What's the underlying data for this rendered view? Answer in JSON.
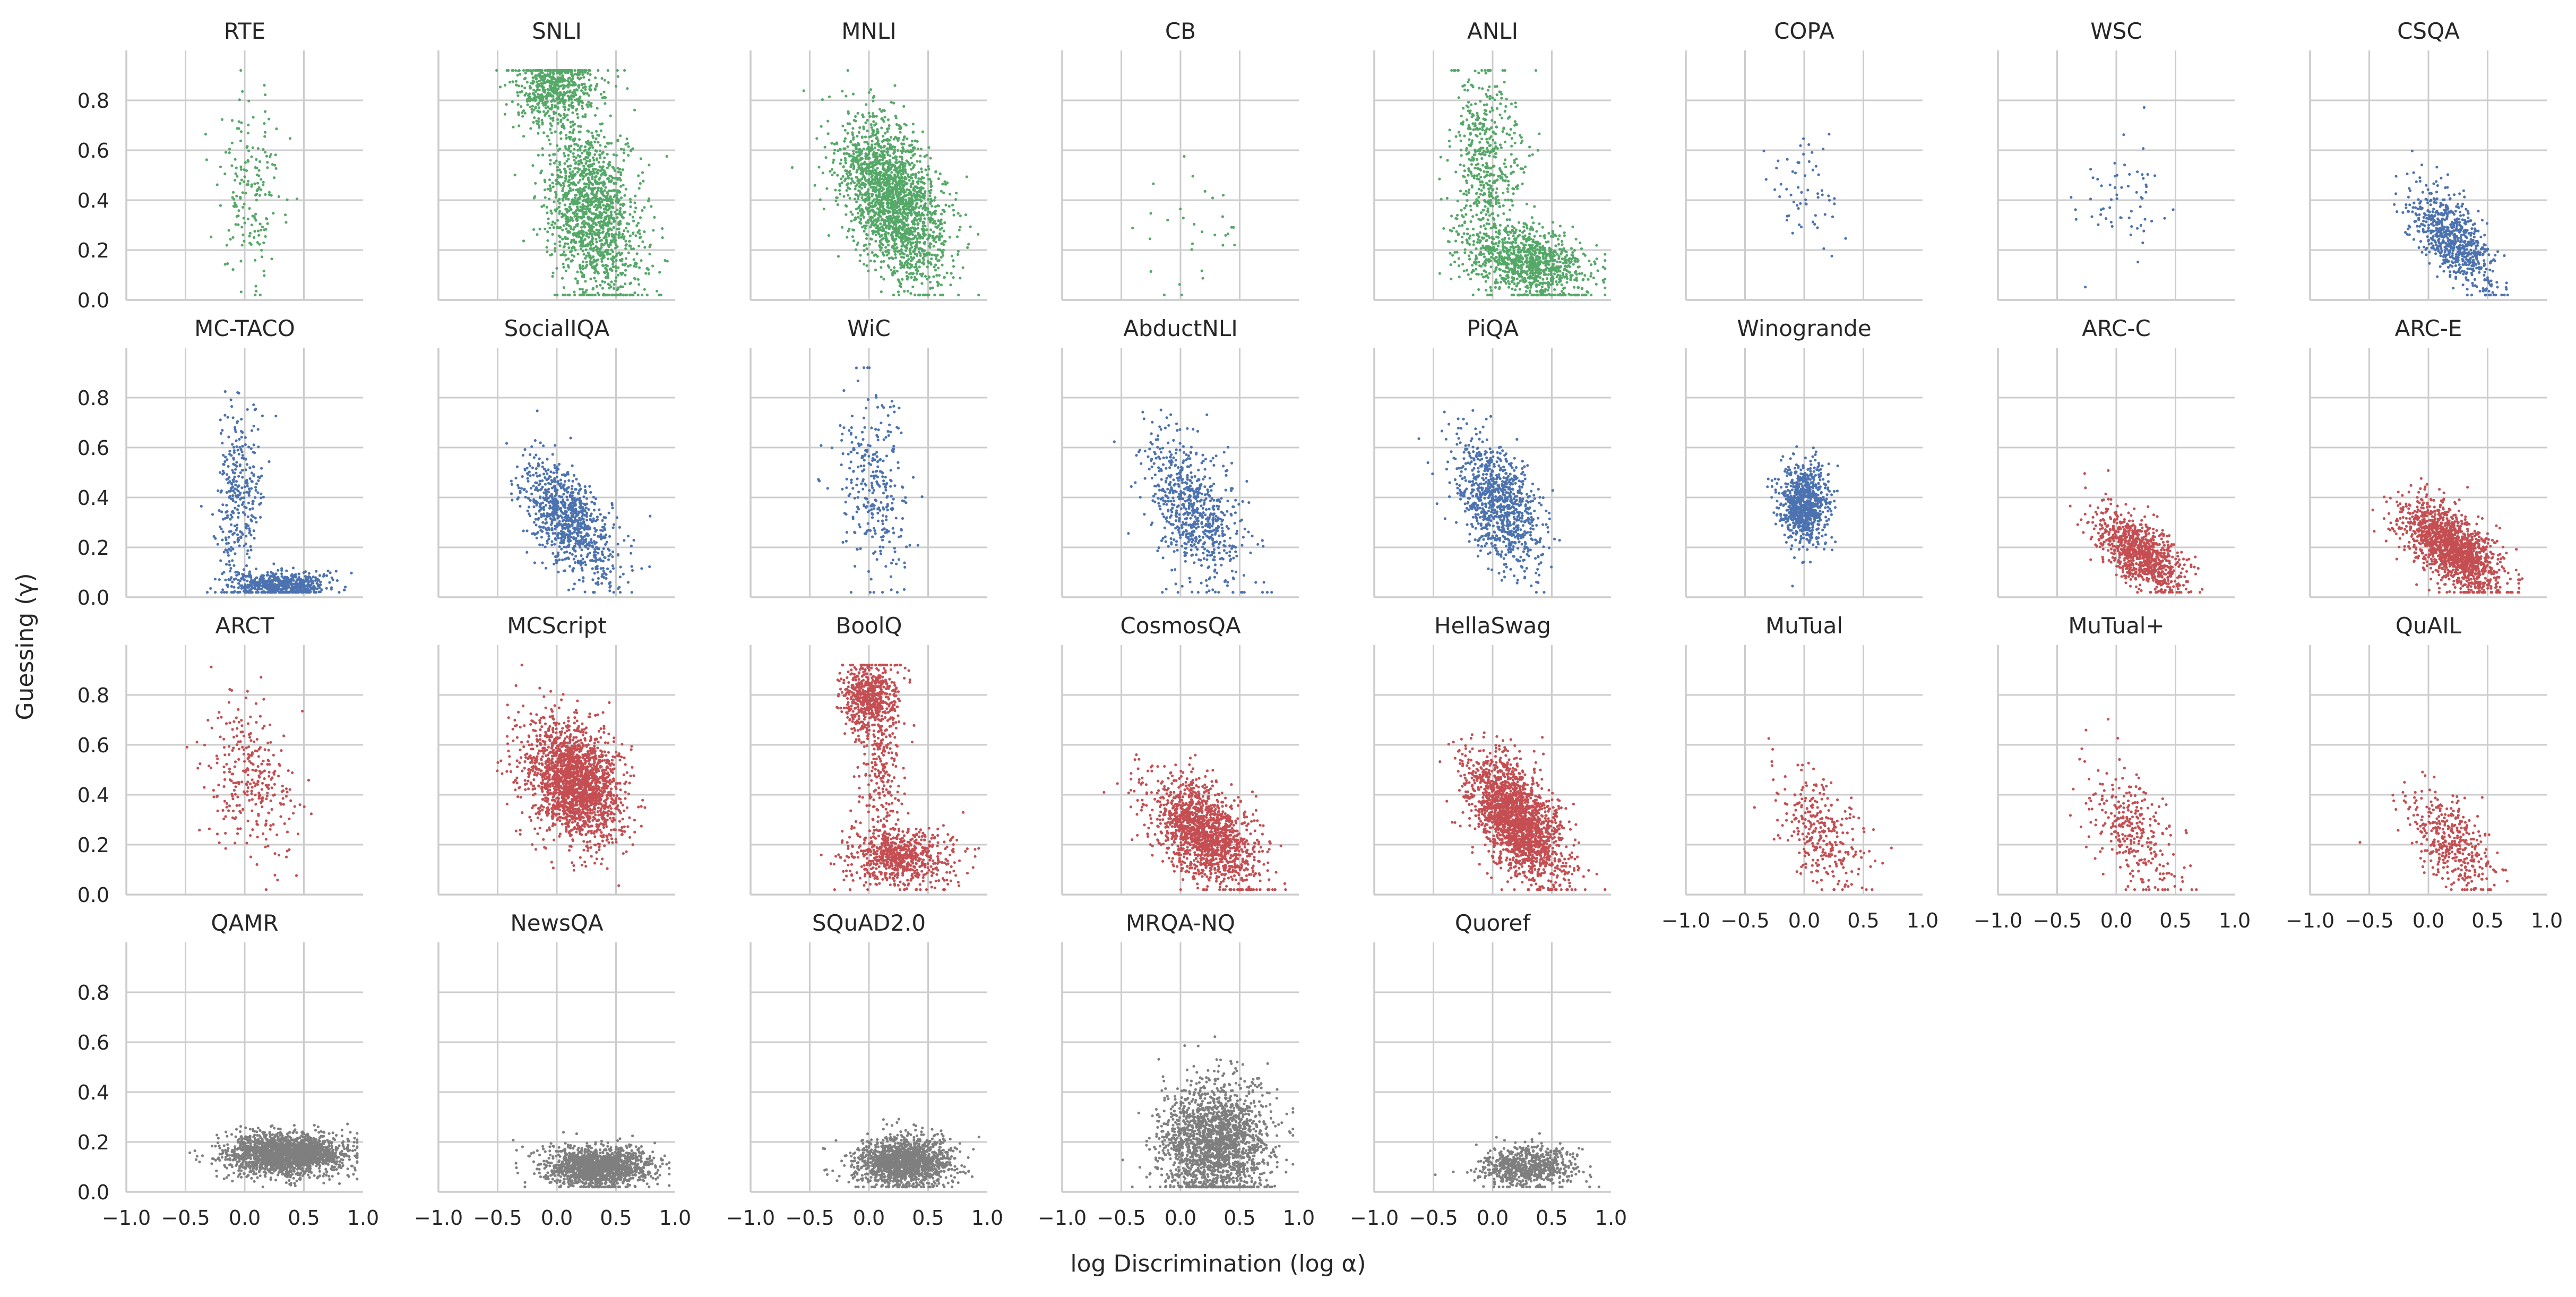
{
  "chart_data": {
    "type": "scatter",
    "layout": "small-multiples grid, 4 rows x 8 columns, shared axes",
    "xlabel": "log Discrimination (log α)",
    "ylabel": "Guessing (γ)",
    "xlim": [
      -1.0,
      1.0
    ],
    "ylim": [
      0.0,
      1.0
    ],
    "x_ticks": [
      -1.0,
      -0.5,
      0.0,
      0.5,
      1.0
    ],
    "x_tick_labels": [
      "−1.0",
      "−0.5",
      "0.0",
      "0.5",
      "1.0"
    ],
    "y_ticks": [
      0.0,
      0.2,
      0.4,
      0.6,
      0.8
    ],
    "y_tick_labels": [
      "0.0",
      "0.2",
      "0.4",
      "0.6",
      "0.8"
    ],
    "grid": true,
    "colors": {
      "green": "#55a868",
      "blue": "#4c72b0",
      "red": "#c44e52",
      "gray": "#7f7f7f"
    },
    "panels": [
      {
        "title": "RTE",
        "color": "green",
        "n": 180,
        "clusters": [
          {
            "w": 1,
            "x": 0.05,
            "sx": 0.15,
            "y": 0.45,
            "sy": 0.18,
            "rho": 0
          }
        ]
      },
      {
        "title": "SNLI",
        "color": "green",
        "n": 2000,
        "clusters": [
          {
            "w": 0.3,
            "x": 0.0,
            "sx": 0.18,
            "y": 0.85,
            "sy": 0.07,
            "rho": 0
          },
          {
            "w": 0.7,
            "x": 0.3,
            "sx": 0.2,
            "y": 0.35,
            "sy": 0.18,
            "rho": -0.3
          }
        ]
      },
      {
        "title": "MNLI",
        "color": "green",
        "n": 2000,
        "clusters": [
          {
            "w": 1,
            "x": 0.2,
            "sx": 0.22,
            "y": 0.4,
            "sy": 0.16,
            "rho": -0.45
          }
        ]
      },
      {
        "title": "CB",
        "color": "green",
        "n": 30,
        "clusters": [
          {
            "w": 1,
            "x": 0.15,
            "sx": 0.22,
            "y": 0.35,
            "sy": 0.15,
            "rho": 0
          }
        ]
      },
      {
        "title": "ANLI",
        "color": "green",
        "n": 1500,
        "clusters": [
          {
            "w": 0.35,
            "x": -0.05,
            "sx": 0.15,
            "y": 0.55,
            "sy": 0.2,
            "rho": 0
          },
          {
            "w": 0.65,
            "x": 0.3,
            "sx": 0.25,
            "y": 0.15,
            "sy": 0.08,
            "rho": -0.3
          }
        ]
      },
      {
        "title": "COPA",
        "color": "blue",
        "n": 60,
        "clusters": [
          {
            "w": 1,
            "x": 0.0,
            "sx": 0.15,
            "y": 0.42,
            "sy": 0.12,
            "rho": -0.3
          }
        ]
      },
      {
        "title": "WSC",
        "color": "blue",
        "n": 60,
        "clusters": [
          {
            "w": 1,
            "x": 0.05,
            "sx": 0.2,
            "y": 0.4,
            "sy": 0.12,
            "rho": 0
          }
        ]
      },
      {
        "title": "CSQA",
        "color": "blue",
        "n": 700,
        "clusters": [
          {
            "w": 1,
            "x": 0.2,
            "sx": 0.18,
            "y": 0.25,
            "sy": 0.1,
            "rho": -0.6
          }
        ]
      },
      {
        "title": "MC-TACO",
        "color": "blue",
        "n": 900,
        "clusters": [
          {
            "w": 0.35,
            "x": -0.05,
            "sx": 0.1,
            "y": 0.4,
            "sy": 0.2,
            "rho": 0
          },
          {
            "w": 0.65,
            "x": 0.3,
            "sx": 0.2,
            "y": 0.05,
            "sy": 0.025,
            "rho": 0
          }
        ]
      },
      {
        "title": "SocialIQA",
        "color": "blue",
        "n": 900,
        "clusters": [
          {
            "w": 1,
            "x": 0.1,
            "sx": 0.2,
            "y": 0.3,
            "sy": 0.12,
            "rho": -0.6
          }
        ]
      },
      {
        "title": "WiC",
        "color": "blue",
        "n": 300,
        "clusters": [
          {
            "w": 1,
            "x": 0.05,
            "sx": 0.15,
            "y": 0.45,
            "sy": 0.18,
            "rho": -0.2
          }
        ]
      },
      {
        "title": "AbductNLI",
        "color": "blue",
        "n": 700,
        "clusters": [
          {
            "w": 1,
            "x": 0.1,
            "sx": 0.2,
            "y": 0.35,
            "sy": 0.15,
            "rho": -0.5
          }
        ]
      },
      {
        "title": "PiQA",
        "color": "blue",
        "n": 900,
        "clusters": [
          {
            "w": 1,
            "x": 0.05,
            "sx": 0.18,
            "y": 0.38,
            "sy": 0.13,
            "rho": -0.5
          }
        ]
      },
      {
        "title": "Winogrande",
        "color": "blue",
        "n": 800,
        "clusters": [
          {
            "w": 1,
            "x": 0.0,
            "sx": 0.1,
            "y": 0.38,
            "sy": 0.08,
            "rho": 0
          }
        ]
      },
      {
        "title": "ARC-C",
        "color": "red",
        "n": 900,
        "clusters": [
          {
            "w": 1,
            "x": 0.2,
            "sx": 0.18,
            "y": 0.18,
            "sy": 0.08,
            "rho": -0.6
          }
        ]
      },
      {
        "title": "ARC-E",
        "color": "red",
        "n": 1500,
        "clusters": [
          {
            "w": 1,
            "x": 0.2,
            "sx": 0.2,
            "y": 0.2,
            "sy": 0.09,
            "rho": -0.6
          }
        ]
      },
      {
        "title": "ARCT",
        "color": "red",
        "n": 300,
        "clusters": [
          {
            "w": 1,
            "x": 0.05,
            "sx": 0.18,
            "y": 0.45,
            "sy": 0.15,
            "rho": -0.2
          }
        ]
      },
      {
        "title": "MCScript",
        "color": "red",
        "n": 2000,
        "clusters": [
          {
            "w": 1,
            "x": 0.15,
            "sx": 0.2,
            "y": 0.45,
            "sy": 0.12,
            "rho": -0.3
          }
        ]
      },
      {
        "title": "BoolQ",
        "color": "red",
        "n": 1500,
        "clusters": [
          {
            "w": 0.4,
            "x": 0.0,
            "sx": 0.12,
            "y": 0.8,
            "sy": 0.07,
            "rho": 0
          },
          {
            "w": 0.15,
            "x": 0.1,
            "sx": 0.1,
            "y": 0.5,
            "sy": 0.15,
            "rho": 0
          },
          {
            "w": 0.45,
            "x": 0.25,
            "sx": 0.22,
            "y": 0.15,
            "sy": 0.06,
            "rho": 0
          }
        ]
      },
      {
        "title": "CosmosQA",
        "color": "red",
        "n": 1500,
        "clusters": [
          {
            "w": 1,
            "x": 0.2,
            "sx": 0.22,
            "y": 0.25,
            "sy": 0.11,
            "rho": -0.5
          }
        ]
      },
      {
        "title": "HellaSwag",
        "color": "red",
        "n": 2000,
        "clusters": [
          {
            "w": 1,
            "x": 0.2,
            "sx": 0.2,
            "y": 0.3,
            "sy": 0.12,
            "rho": -0.55
          }
        ]
      },
      {
        "title": "MuTual",
        "color": "red",
        "n": 300,
        "clusters": [
          {
            "w": 1,
            "x": 0.15,
            "sx": 0.18,
            "y": 0.25,
            "sy": 0.12,
            "rho": -0.4
          }
        ]
      },
      {
        "title": "MuTual+",
        "color": "red",
        "n": 300,
        "clusters": [
          {
            "w": 1,
            "x": 0.15,
            "sx": 0.18,
            "y": 0.25,
            "sy": 0.12,
            "rho": -0.4
          }
        ]
      },
      {
        "title": "QuAIL",
        "color": "red",
        "n": 400,
        "clusters": [
          {
            "w": 1,
            "x": 0.2,
            "sx": 0.18,
            "y": 0.2,
            "sy": 0.1,
            "rho": -0.5
          }
        ]
      },
      {
        "title": "QAMR",
        "color": "gray",
        "n": 2000,
        "clusters": [
          {
            "w": 1,
            "x": 0.35,
            "sx": 0.25,
            "y": 0.15,
            "sy": 0.04,
            "rho": 0
          }
        ]
      },
      {
        "title": "NewsQA",
        "color": "gray",
        "n": 1500,
        "clusters": [
          {
            "w": 1,
            "x": 0.35,
            "sx": 0.22,
            "y": 0.1,
            "sy": 0.04,
            "rho": 0
          }
        ]
      },
      {
        "title": "SQuAD2.0",
        "color": "gray",
        "n": 1500,
        "clusters": [
          {
            "w": 1,
            "x": 0.3,
            "sx": 0.2,
            "y": 0.12,
            "sy": 0.05,
            "rho": 0
          }
        ]
      },
      {
        "title": "MRQA-NQ",
        "color": "gray",
        "n": 2000,
        "clusters": [
          {
            "w": 1,
            "x": 0.3,
            "sx": 0.22,
            "y": 0.2,
            "sy": 0.12,
            "rho": 0
          }
        ]
      },
      {
        "title": "Quoref",
        "color": "gray",
        "n": 700,
        "clusters": [
          {
            "w": 1,
            "x": 0.3,
            "sx": 0.2,
            "y": 0.1,
            "sy": 0.04,
            "rho": 0
          }
        ]
      }
    ]
  }
}
